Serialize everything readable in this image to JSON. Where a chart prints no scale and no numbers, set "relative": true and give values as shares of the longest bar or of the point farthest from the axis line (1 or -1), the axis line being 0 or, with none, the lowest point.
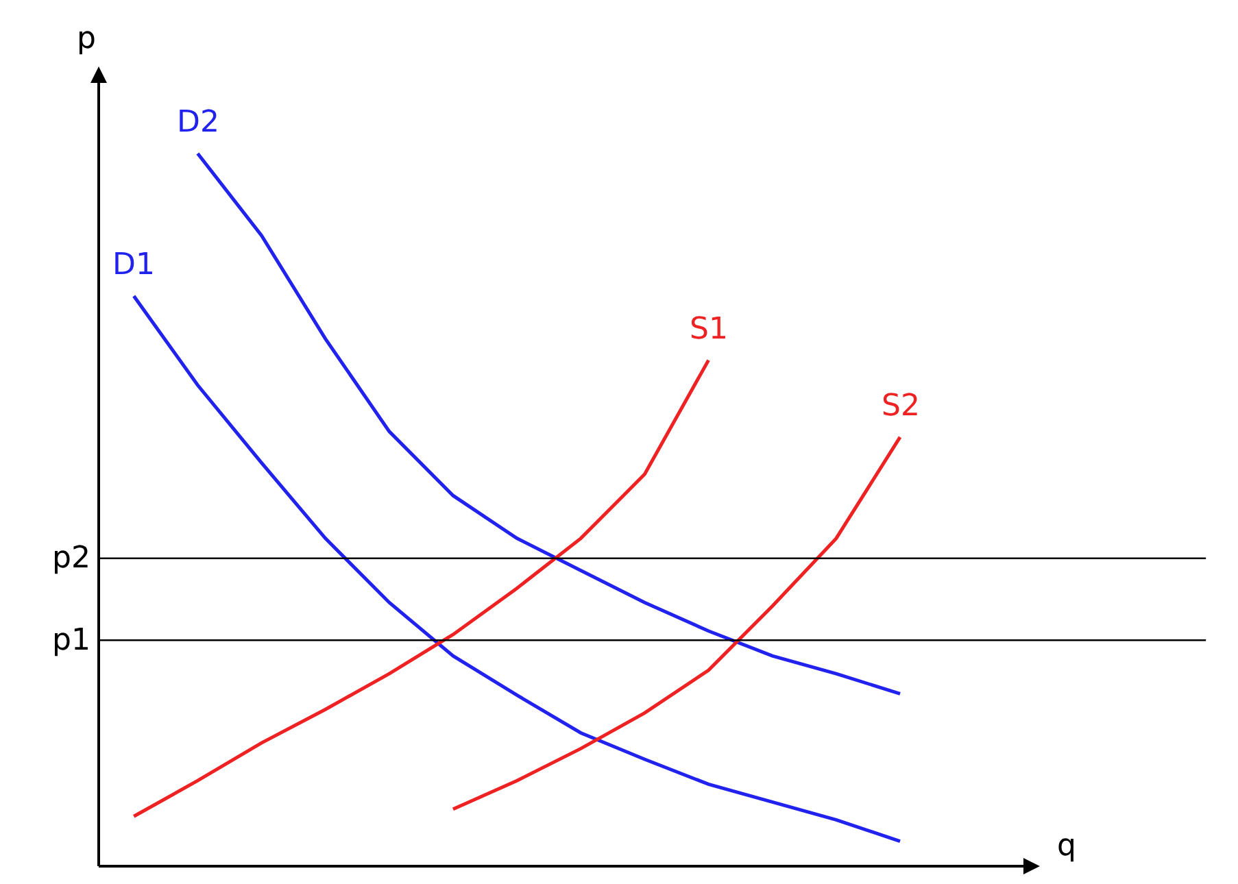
{
  "chart_data": {
    "type": "line",
    "relative": true,
    "xlabel": "q",
    "ylabel": "p",
    "legend": false,
    "grid": false,
    "marker": "none",
    "line_style": "solid",
    "categories": [
      null,
      null,
      null,
      null,
      null,
      null,
      null,
      null,
      null,
      null,
      null,
      null,
      null
    ],
    "series": [
      {
        "name": "D1",
        "color": "#2222ee",
        "values": [
          0.8,
          0.675,
          0.566,
          0.46,
          0.37,
          0.295,
          0.24,
          0.187,
          0.15,
          0.115,
          0.09,
          0.065,
          0.035
        ]
      },
      {
        "name": "D2",
        "color": "#2222ee",
        "values": [
          null,
          1.0,
          0.885,
          0.74,
          0.61,
          0.52,
          0.46,
          0.415,
          0.37,
          0.33,
          0.295,
          0.27,
          0.242
        ]
      },
      {
        "name": "S1",
        "color": "#ee2222",
        "values": [
          0.07,
          0.12,
          0.173,
          0.22,
          0.27,
          0.325,
          0.39,
          0.46,
          0.55,
          0.71,
          null,
          null,
          null
        ]
      },
      {
        "name": "S2",
        "color": "#ee2222",
        "values": [
          null,
          null,
          null,
          null,
          null,
          0.08,
          0.12,
          0.165,
          0.215,
          0.275,
          0.365,
          0.46,
          0.602
        ]
      }
    ],
    "ref_lines": [
      {
        "axis": "y",
        "value": 0.432,
        "label": "p2",
        "color": "#000000"
      },
      {
        "axis": "y",
        "value": 0.317,
        "label": "p1",
        "color": "#000000"
      }
    ]
  }
}
